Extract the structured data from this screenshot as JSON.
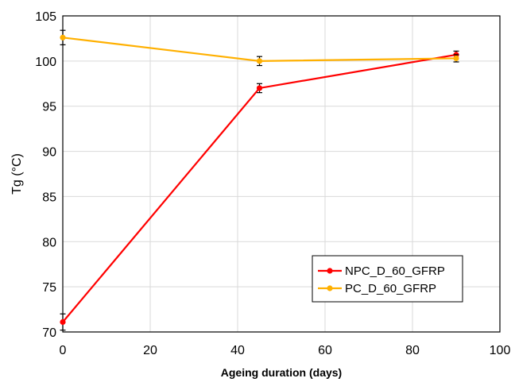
{
  "chart_data": {
    "type": "line",
    "xlabel": "Ageing duration (days)",
    "ylabel": "Tg (°C)",
    "xlim": [
      0,
      100
    ],
    "ylim": [
      70,
      105
    ],
    "xticks": [
      0,
      20,
      40,
      60,
      80,
      100
    ],
    "yticks": [
      70,
      75,
      80,
      85,
      90,
      95,
      100,
      105
    ],
    "grid": true,
    "legend_position": "bottom-right",
    "series": [
      {
        "name": "NPC_D_60_GFRP",
        "color": "#ff0000",
        "x": [
          0,
          45,
          90
        ],
        "y": [
          71.1,
          97.0,
          100.7
        ],
        "err": [
          0.9,
          0.5,
          0.4
        ]
      },
      {
        "name": "PC_D_60_GFRP",
        "color": "#ffb000",
        "x": [
          0,
          45,
          90
        ],
        "y": [
          102.6,
          100.0,
          100.3
        ],
        "err": [
          0.8,
          0.5,
          0.4
        ]
      }
    ]
  }
}
